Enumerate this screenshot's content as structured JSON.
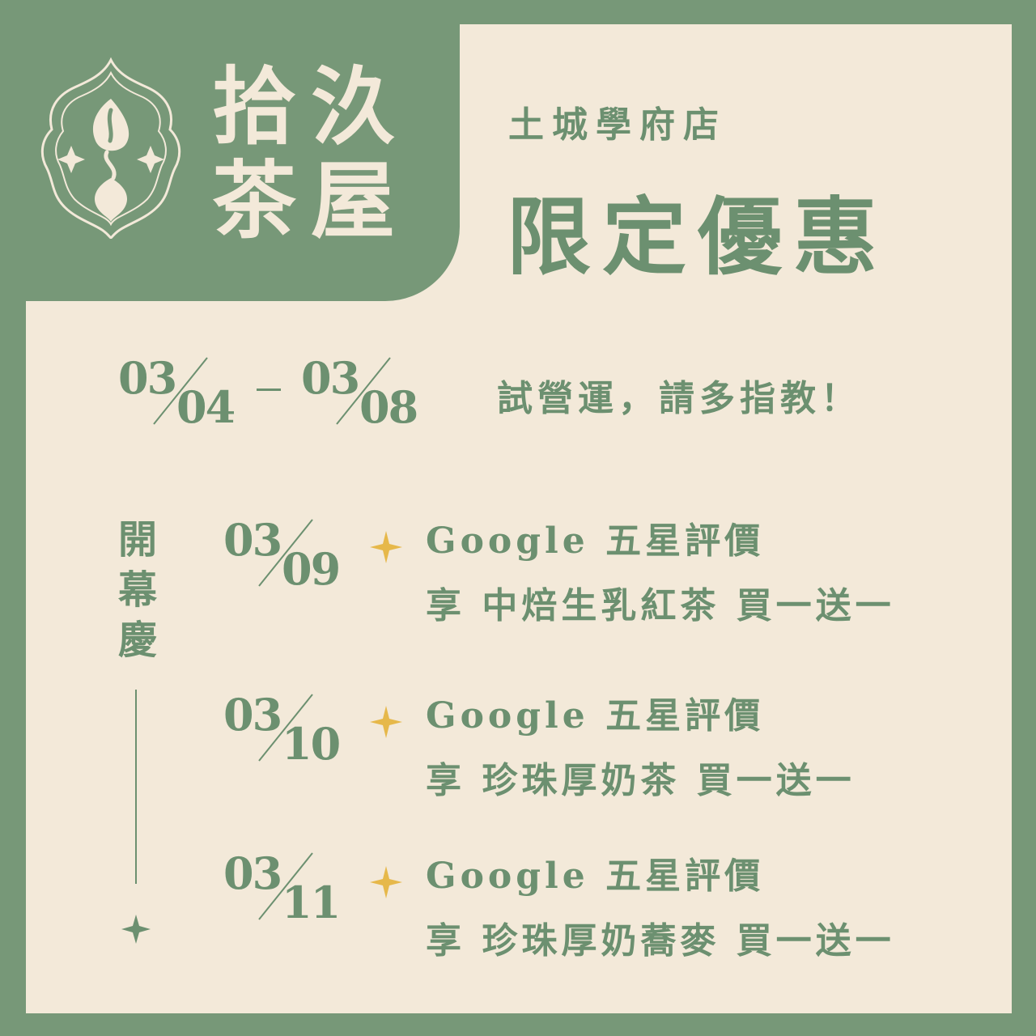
{
  "brand": {
    "name_line1": "拾汣",
    "name_line2": "茶屋",
    "logo_icon": "tea-leaf-arch-logo-icon"
  },
  "store_name": "土城學府店",
  "promo_title": "限定優惠",
  "trial": {
    "start": {
      "month": "03",
      "day": "04"
    },
    "end": {
      "month": "03",
      "day": "08"
    },
    "text": "試營運，請多指教！"
  },
  "opening": {
    "label": "開幕慶",
    "events": [
      {
        "month": "03",
        "day": "09",
        "line1": "Google 五星評價",
        "line2": "享 中焙生乳紅茶 買一送一"
      },
      {
        "month": "03",
        "day": "10",
        "line1": "Google 五星評價",
        "line2": "享 珍珠厚奶茶 買一送一"
      },
      {
        "month": "03",
        "day": "11",
        "line1": "Google 五星評價",
        "line2": "享 珍珠厚奶蕎麥 買一送一"
      }
    ]
  },
  "colors": {
    "primary_green": "#779878",
    "text_green": "#6c9070",
    "cream": "#f3e9d9",
    "gold_star": "#e6b84a"
  }
}
